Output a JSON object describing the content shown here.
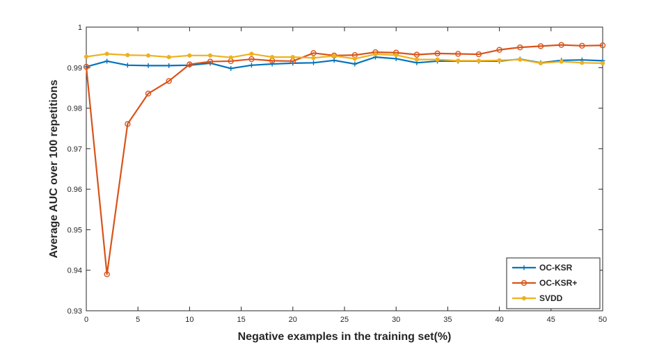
{
  "chart_data": {
    "type": "line",
    "title": "",
    "xlabel": "Negative examples in the training set(%)",
    "ylabel": "Average AUC over 100 repetitions",
    "xlim": [
      0,
      50
    ],
    "ylim": [
      0.93,
      1
    ],
    "xticks": [
      0,
      5,
      10,
      15,
      20,
      25,
      30,
      35,
      40,
      45,
      50
    ],
    "yticks": [
      0.93,
      0.94,
      0.95,
      0.96,
      0.97,
      0.98,
      0.99,
      1
    ],
    "ytick_labels": [
      "0.93",
      "0.94",
      "0.95",
      "0.96",
      "0.97",
      "0.98",
      "0.99",
      "1"
    ],
    "grid": false,
    "legend_position": "bottom-right",
    "x": [
      0,
      2,
      4,
      6,
      8,
      10,
      12,
      14,
      16,
      18,
      20,
      22,
      24,
      26,
      28,
      30,
      32,
      34,
      36,
      38,
      40,
      42,
      44,
      46,
      48,
      50
    ],
    "series": [
      {
        "name": "OC-KSR",
        "color": "#0072BD",
        "marker": "plus",
        "values": [
          0.9902,
          0.9916,
          0.9906,
          0.9905,
          0.9905,
          0.9906,
          0.9911,
          0.9898,
          0.9906,
          0.9909,
          0.9911,
          0.9912,
          0.9918,
          0.9909,
          0.9926,
          0.9922,
          0.9912,
          0.9916,
          0.9916,
          0.9916,
          0.9916,
          0.9921,
          0.9912,
          0.9918,
          0.9919,
          0.9917
        ]
      },
      {
        "name": "OC-KSR+",
        "color": "#D95319",
        "marker": "circle",
        "values": [
          0.9902,
          0.939,
          0.9761,
          0.9836,
          0.9867,
          0.9908,
          0.9915,
          0.9916,
          0.9921,
          0.9917,
          0.9916,
          0.9936,
          0.993,
          0.9931,
          0.9938,
          0.9937,
          0.9932,
          0.9935,
          0.9934,
          0.9933,
          0.9944,
          0.995,
          0.9953,
          0.9956,
          0.9954,
          0.9955
        ]
      },
      {
        "name": "SVDD",
        "color": "#EDB120",
        "marker": "dot",
        "values": [
          0.9927,
          0.9934,
          0.9931,
          0.993,
          0.9926,
          0.993,
          0.993,
          0.9925,
          0.9934,
          0.9926,
          0.9926,
          0.9924,
          0.9929,
          0.9922,
          0.9933,
          0.9931,
          0.992,
          0.992,
          0.9917,
          0.9917,
          0.9918,
          0.992,
          0.9911,
          0.9915,
          0.9912,
          0.9911
        ]
      }
    ]
  }
}
